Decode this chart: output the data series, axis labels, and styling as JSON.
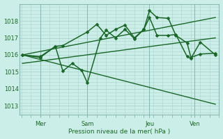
{
  "background_color": "#cceee8",
  "grid_color": "#aad4cc",
  "line_color": "#1a6628",
  "ylabel": "Pression niveau de la mer( hPa )",
  "ylim": [
    1012.5,
    1019.0
  ],
  "yticks": [
    1013,
    1014,
    1015,
    1016,
    1017,
    1018
  ],
  "xlim": [
    -0.1,
    10.5
  ],
  "day_labels": [
    "Mer",
    "Sam",
    "Jeu",
    "Ven"
  ],
  "day_positions": [
    1.0,
    3.5,
    6.8,
    9.2
  ],
  "lines": [
    {
      "x": [
        0.05,
        1.0,
        1.8,
        2.2,
        3.5,
        4.0,
        4.5,
        5.0,
        5.5,
        6.0,
        6.5,
        6.8,
        7.2,
        7.8,
        8.2,
        8.8,
        9.0,
        9.5,
        10.3
      ],
      "y": [
        1016.0,
        1015.9,
        1016.5,
        1016.55,
        1017.35,
        1017.8,
        1017.15,
        1017.5,
        1017.75,
        1017.0,
        1017.5,
        1018.6,
        1018.2,
        1018.15,
        1017.15,
        1016.7,
        1015.85,
        1016.05,
        1016.1
      ],
      "marker": "D",
      "markersize": 2.5,
      "linewidth": 1.1,
      "linestyle": "-"
    },
    {
      "x": [
        0.05,
        1.0,
        1.8,
        2.2,
        2.7,
        3.2,
        3.5,
        4.2,
        4.5,
        5.0,
        5.5,
        6.0,
        6.5,
        6.8,
        7.2,
        7.8,
        8.2,
        8.8,
        9.0,
        9.5,
        10.3
      ],
      "y": [
        1016.0,
        1015.85,
        1016.5,
        1015.05,
        1015.5,
        1015.1,
        1014.35,
        1017.0,
        1017.45,
        1017.0,
        1017.5,
        1016.95,
        1017.5,
        1018.2,
        1017.15,
        1017.15,
        1017.2,
        1015.9,
        1015.8,
        1016.75,
        1016.0
      ],
      "marker": "D",
      "markersize": 2.5,
      "linewidth": 1.1,
      "linestyle": "-"
    },
    {
      "x": [
        0.05,
        10.3
      ],
      "y": [
        1016.0,
        1018.2
      ],
      "marker": "D",
      "markersize": 0,
      "linewidth": 1.0,
      "linestyle": "-"
    },
    {
      "x": [
        0.05,
        10.3
      ],
      "y": [
        1016.0,
        1013.1
      ],
      "marker": "D",
      "markersize": 0,
      "linewidth": 1.0,
      "linestyle": "-"
    },
    {
      "x": [
        0.05,
        10.3
      ],
      "y": [
        1015.5,
        1017.0
      ],
      "marker": "D",
      "markersize": 0,
      "linewidth": 1.0,
      "linestyle": "-"
    }
  ]
}
